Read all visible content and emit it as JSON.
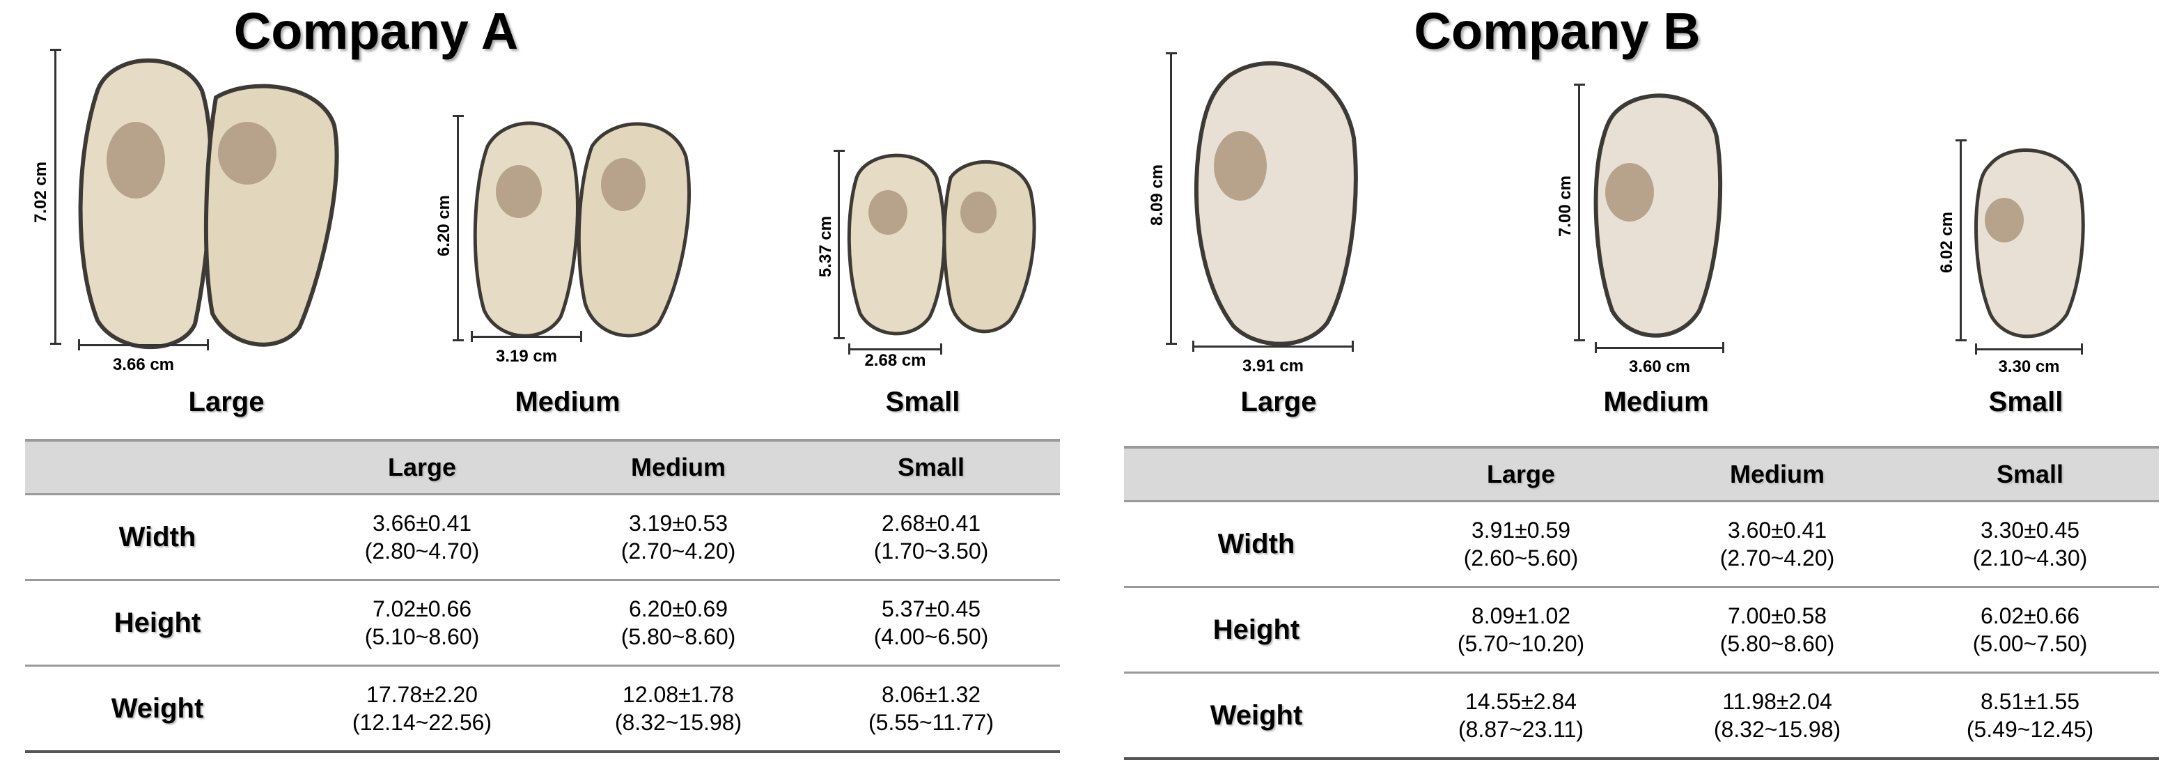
{
  "companies": [
    {
      "title": "Company A",
      "photos": [
        {
          "size_label": "Large",
          "height_label": "7.02 cm",
          "width_label": "3.66 cm"
        },
        {
          "size_label": "Medium",
          "height_label": "6.20 cm",
          "width_label": "3.19 cm"
        },
        {
          "size_label": "Small",
          "height_label": "5.37 cm",
          "width_label": "2.68 cm"
        }
      ],
      "table": {
        "columns": [
          "",
          "Large",
          "Medium",
          "Small"
        ],
        "rows": [
          {
            "label": "Width",
            "cells": [
              {
                "mean": "3.66±0.41",
                "range": "(2.80~4.70)"
              },
              {
                "mean": "3.19±0.53",
                "range": "(2.70~4.20)"
              },
              {
                "mean": "2.68±0.41",
                "range": "(1.70~3.50)"
              }
            ]
          },
          {
            "label": "Height",
            "cells": [
              {
                "mean": "7.02±0.66",
                "range": "(5.10~8.60)"
              },
              {
                "mean": "6.20±0.69",
                "range": "(5.80~8.60)"
              },
              {
                "mean": "5.37±0.45",
                "range": "(4.00~6.50)"
              }
            ]
          },
          {
            "label": "Weight",
            "cells": [
              {
                "mean": "17.78±2.20",
                "range": "(12.14~22.56)"
              },
              {
                "mean": "12.08±1.78",
                "range": "(8.32~15.98)"
              },
              {
                "mean": "8.06±1.32",
                "range": "(5.55~11.77)"
              }
            ]
          }
        ]
      }
    },
    {
      "title": "Company B",
      "photos": [
        {
          "size_label": "Large",
          "height_label": "8.09 cm",
          "width_label": "3.91 cm"
        },
        {
          "size_label": "Medium",
          "height_label": "7.00 cm",
          "width_label": "3.60 cm"
        },
        {
          "size_label": "Small",
          "height_label": "6.02 cm",
          "width_label": "3.30 cm"
        }
      ],
      "table": {
        "columns": [
          "",
          "Large",
          "Medium",
          "Small"
        ],
        "rows": [
          {
            "label": "Width",
            "cells": [
              {
                "mean": "3.91±0.59",
                "range": "(2.60~5.60)"
              },
              {
                "mean": "3.60±0.41",
                "range": "(2.70~4.20)"
              },
              {
                "mean": "3.30±0.45",
                "range": "(2.10~4.30)"
              }
            ]
          },
          {
            "label": "Height",
            "cells": [
              {
                "mean": "8.09±1.02",
                "range": "(5.70~10.20)"
              },
              {
                "mean": "7.00±0.58",
                "range": "(5.80~8.60)"
              },
              {
                "mean": "6.02±0.66",
                "range": "(5.00~7.50)"
              }
            ]
          },
          {
            "label": "Weight",
            "cells": [
              {
                "mean": "14.55±2.84",
                "range": "(8.87~23.11)"
              },
              {
                "mean": "11.98±2.04",
                "range": "(8.32~15.98)"
              },
              {
                "mean": "8.51±1.55",
                "range": "(5.49~12.45)"
              }
            ]
          }
        ]
      }
    }
  ],
  "colors": {
    "oyster_body": "#e6dcc6",
    "oyster_adductor": "#b7a38c",
    "oyster_mantle_edge": "#3d3a36",
    "table_header_bg": "#d9d9d9",
    "table_rule": "#9a9a9a"
  },
  "icons": [
    "oyster-photo"
  ]
}
